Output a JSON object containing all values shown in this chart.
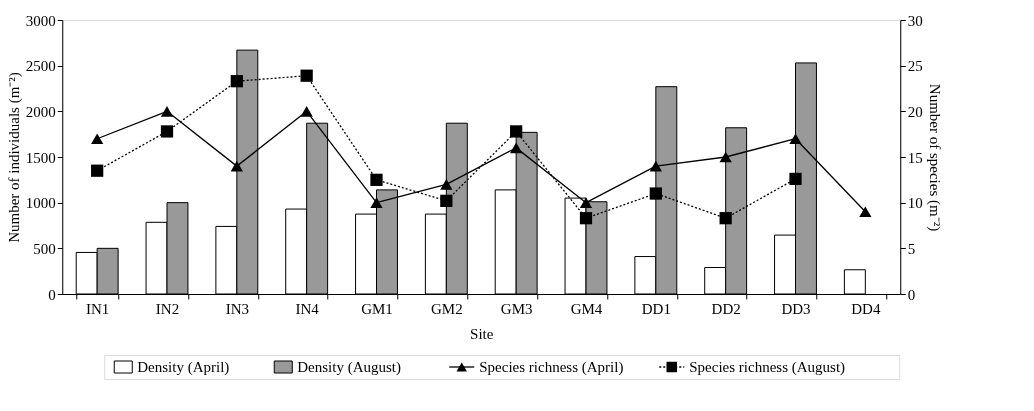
{
  "chart_data": {
    "type": "bar",
    "xlabel": "Site",
    "ylabel": "Number of individuals (m⁻²)",
    "y2label": "Number of species (m⁻²)",
    "categories": [
      "IN1",
      "IN2",
      "IN3",
      "IN4",
      "GM1",
      "GM2",
      "GM3",
      "GM4",
      "DD1",
      "DD2",
      "DD3",
      "DD4"
    ],
    "series": [
      {
        "name": "Density (April)",
        "color": "#ffffff",
        "values": [
          455,
          785,
          740,
          930,
          875,
          875,
          1140,
          1050,
          410,
          290,
          645,
          265
        ]
      },
      {
        "name": "Density (August)",
        "color": "#999999",
        "values": [
          500,
          1000,
          2670,
          1870,
          1140,
          1870,
          1770,
          1010,
          2270,
          1820,
          2530,
          null
        ]
      },
      {
        "name": "Species richness (April)",
        "type": "line",
        "axis": "y2",
        "color": "#000000",
        "marker": "triangle",
        "line_style": "solid",
        "values": [
          17,
          20,
          14,
          20,
          10,
          12,
          16,
          10,
          14,
          15,
          17,
          9
        ]
      },
      {
        "name": "Species richness (August)",
        "type": "line",
        "axis": "y2",
        "color": "#000000",
        "marker": "square",
        "line_style": "dotted",
        "values": [
          13.5,
          17.8,
          23.3,
          23.9,
          12.5,
          10.2,
          17.8,
          8.3,
          11,
          8.3,
          12.6,
          null
        ]
      }
    ],
    "ylim": [
      0,
      3000
    ],
    "yticks": [
      0,
      500,
      1000,
      1500,
      2000,
      2500,
      3000
    ],
    "y2lim": [
      0,
      30
    ],
    "y2ticks": [
      0,
      5,
      10,
      15,
      20,
      25,
      30
    ],
    "grid": false,
    "legend": "bottom"
  }
}
